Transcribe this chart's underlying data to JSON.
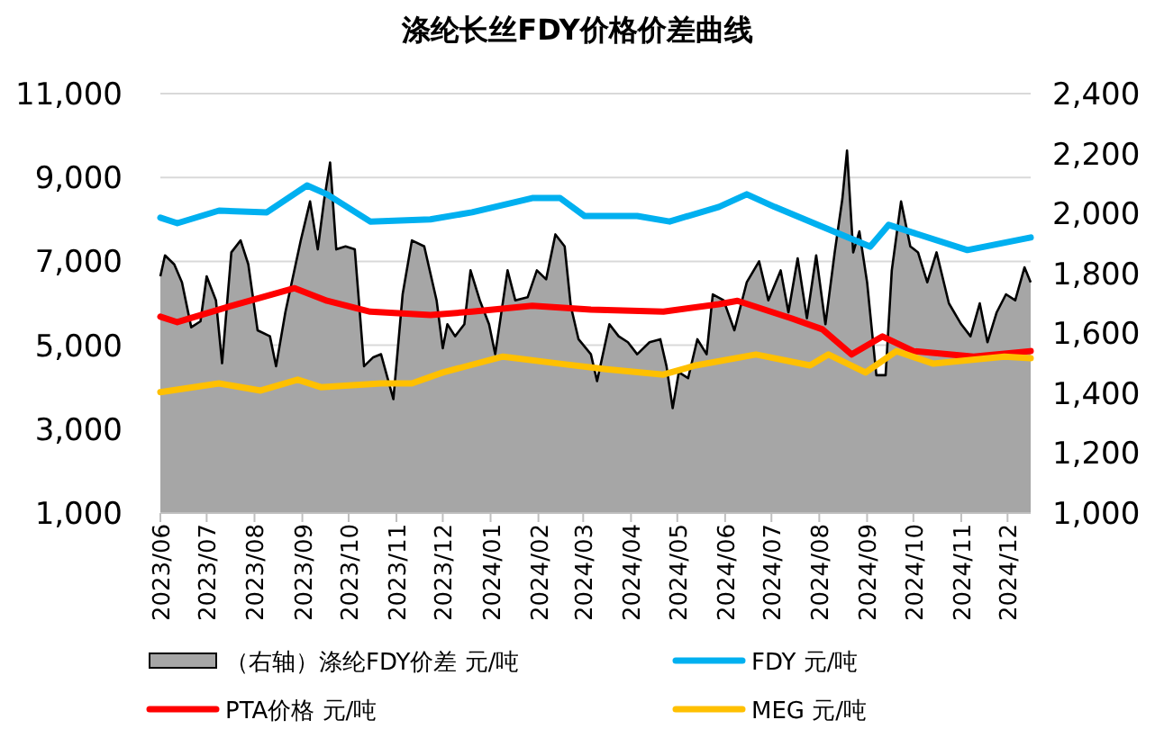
{
  "chart_data": {
    "type": "line",
    "title": "涤纶长丝FDY价格价差曲线",
    "xlim": [
      "2023-06-01",
      "2024-12-16"
    ],
    "xticks": [
      {
        "value": "2023-06-01",
        "label": "2023/06"
      },
      {
        "value": "2023-07-01",
        "label": "2023/07"
      },
      {
        "value": "2023-08-01",
        "label": "2023/08"
      },
      {
        "value": "2023-09-01",
        "label": "2023/09"
      },
      {
        "value": "2023-10-01",
        "label": "2023/10"
      },
      {
        "value": "2023-11-01",
        "label": "2023/11"
      },
      {
        "value": "2023-12-01",
        "label": "2023/12"
      },
      {
        "value": "2024-01-01",
        "label": "2024/01"
      },
      {
        "value": "2024-02-01",
        "label": "2024/02"
      },
      {
        "value": "2024-03-01",
        "label": "2024/03"
      },
      {
        "value": "2024-04-01",
        "label": "2024/04"
      },
      {
        "value": "2024-05-01",
        "label": "2024/05"
      },
      {
        "value": "2024-06-01",
        "label": "2024/06"
      },
      {
        "value": "2024-07-01",
        "label": "2024/07"
      },
      {
        "value": "2024-08-01",
        "label": "2024/08"
      },
      {
        "value": "2024-09-01",
        "label": "2024/09"
      },
      {
        "value": "2024-10-01",
        "label": "2024/10"
      },
      {
        "value": "2024-11-01",
        "label": "2024/11"
      },
      {
        "value": "2024-12-01",
        "label": "2024/12"
      }
    ],
    "ylim": [
      1000,
      11000
    ],
    "yticks": [
      {
        "value": 1000,
        "label": "1,000"
      },
      {
        "value": 3000,
        "label": "3,000"
      },
      {
        "value": 5000,
        "label": "5,000"
      },
      {
        "value": 7000,
        "label": "7,000"
      },
      {
        "value": 9000,
        "label": "9,000"
      },
      {
        "value": 11000,
        "label": "11,000"
      }
    ],
    "y2lim": [
      1000,
      2400
    ],
    "y2ticks": [
      {
        "value": 1000,
        "label": "1,000"
      },
      {
        "value": 1200,
        "label": "1,200"
      },
      {
        "value": 1400,
        "label": "1,400"
      },
      {
        "value": 1600,
        "label": "1,600"
      },
      {
        "value": 1800,
        "label": "1,800"
      },
      {
        "value": 2000,
        "label": "2,000"
      },
      {
        "value": 2200,
        "label": "2,200"
      },
      {
        "value": 2400,
        "label": "2,400"
      }
    ],
    "grid": "y",
    "legend": "bottom",
    "series": [
      {
        "name": "（右轴）涤纶FDY价差 元/吨",
        "type": "area",
        "axis": "y2",
        "color": "#a6a6a6",
        "x": [
          "2023-06-01",
          "2023-06-04",
          "2023-06-10",
          "2023-06-15",
          "2023-06-21",
          "2023-06-27",
          "2023-07-01",
          "2023-07-07",
          "2023-07-11",
          "2023-07-17",
          "2023-07-23",
          "2023-07-28",
          "2023-08-03",
          "2023-08-11",
          "2023-08-15",
          "2023-08-21",
          "2023-08-31",
          "2023-09-06",
          "2023-09-11",
          "2023-09-15",
          "2023-09-19",
          "2023-09-23",
          "2023-09-29",
          "2023-10-05",
          "2023-10-11",
          "2023-10-17",
          "2023-10-22",
          "2023-10-30",
          "2023-11-05",
          "2023-11-11",
          "2023-11-19",
          "2023-11-27",
          "2023-12-01",
          "2023-12-04",
          "2023-12-09",
          "2023-12-15",
          "2023-12-19",
          "2023-12-25",
          "2023-12-31",
          "2024-01-04",
          "2024-01-12",
          "2024-01-17",
          "2024-01-25",
          "2024-01-31",
          "2024-02-06",
          "2024-02-12",
          "2024-02-18",
          "2024-02-22",
          "2024-02-27",
          "2024-03-06",
          "2024-03-10",
          "2024-03-18",
          "2024-03-24",
          "2024-03-30",
          "2024-04-05",
          "2024-04-13",
          "2024-04-20",
          "2024-04-24",
          "2024-04-28",
          "2024-05-02",
          "2024-05-08",
          "2024-05-14",
          "2024-05-20",
          "2024-05-24",
          "2024-05-31",
          "2024-06-07",
          "2024-06-15",
          "2024-06-23",
          "2024-06-29",
          "2024-07-07",
          "2024-07-12",
          "2024-07-18",
          "2024-07-24",
          "2024-07-30",
          "2024-08-05",
          "2024-08-11",
          "2024-08-16",
          "2024-08-19",
          "2024-08-23",
          "2024-08-27",
          "2024-09-01",
          "2024-09-07",
          "2024-09-13",
          "2024-09-17",
          "2024-09-23",
          "2024-09-29",
          "2024-10-04",
          "2024-10-10",
          "2024-10-16",
          "2024-10-24",
          "2024-11-01",
          "2024-11-07",
          "2024-11-13",
          "2024-11-18",
          "2024-11-24",
          "2024-11-30",
          "2024-12-06",
          "2024-12-12",
          "2024-12-16"
        ],
        "values": [
          1790,
          1860,
          1830,
          1770,
          1620,
          1640,
          1790,
          1710,
          1500,
          1870,
          1910,
          1830,
          1610,
          1590,
          1490,
          1670,
          1910,
          2040,
          1880,
          2040,
          2170,
          1880,
          1890,
          1880,
          1490,
          1520,
          1530,
          1380,
          1730,
          1910,
          1890,
          1710,
          1550,
          1630,
          1590,
          1630,
          1810,
          1710,
          1630,
          1530,
          1810,
          1710,
          1720,
          1810,
          1780,
          1930,
          1890,
          1690,
          1580,
          1530,
          1440,
          1630,
          1590,
          1570,
          1530,
          1570,
          1580,
          1490,
          1350,
          1470,
          1450,
          1580,
          1530,
          1730,
          1710,
          1610,
          1770,
          1840,
          1710,
          1810,
          1670,
          1850,
          1650,
          1860,
          1630,
          1870,
          2050,
          2210,
          1870,
          1940,
          1770,
          1460,
          1460,
          1810,
          2040,
          1890,
          1870,
          1770,
          1870,
          1700,
          1630,
          1590,
          1700,
          1570,
          1670,
          1730,
          1710,
          1820,
          1770
        ]
      },
      {
        "name": "FDY 元/吨",
        "color": "#00b0f0",
        "x": [
          "2023-06-01",
          "2023-06-12",
          "2023-07-09",
          "2023-08-09",
          "2023-09-04",
          "2023-09-17",
          "2023-10-15",
          "2023-11-23",
          "2023-12-20",
          "2024-01-28",
          "2024-02-15",
          "2024-03-02",
          "2024-04-05",
          "2024-04-26",
          "2024-05-28",
          "2024-06-15",
          "2024-07-03",
          "2024-09-03",
          "2024-09-15",
          "2024-11-05",
          "2024-12-16"
        ],
        "values": [
          8040,
          7910,
          8210,
          8170,
          8810,
          8600,
          7950,
          8000,
          8170,
          8510,
          8510,
          8080,
          8080,
          7950,
          8300,
          8600,
          8300,
          7350,
          7870,
          7270,
          7570
        ]
      },
      {
        "name": "PTA价格 元/吨",
        "color": "#ff0000",
        "x": [
          "2023-06-01",
          "2023-06-12",
          "2023-07-17",
          "2023-08-27",
          "2023-09-17",
          "2023-10-15",
          "2023-11-23",
          "2023-12-20",
          "2024-01-28",
          "2024-03-06",
          "2024-04-22",
          "2024-05-28",
          "2024-06-09",
          "2024-07-14",
          "2024-08-03",
          "2024-08-22",
          "2024-09-11",
          "2024-10-01",
          "2024-11-09",
          "2024-12-16"
        ],
        "values": [
          5680,
          5550,
          5940,
          6360,
          6060,
          5800,
          5720,
          5800,
          5940,
          5850,
          5800,
          5980,
          6060,
          5640,
          5380,
          4780,
          5210,
          4860,
          4730,
          4860
        ]
      },
      {
        "name": "MEG 元/吨",
        "color": "#ffc000",
        "x": [
          "2023-06-01",
          "2023-07-09",
          "2023-08-05",
          "2023-08-29",
          "2023-09-13",
          "2023-10-22",
          "2023-11-11",
          "2023-12-01",
          "2024-01-09",
          "2024-02-15",
          "2024-03-16",
          "2024-04-22",
          "2024-05-13",
          "2024-06-21",
          "2024-07-26",
          "2024-08-07",
          "2024-08-31",
          "2024-09-20",
          "2024-10-14",
          "2024-11-29",
          "2024-12-16"
        ],
        "values": [
          3880,
          4090,
          3920,
          4180,
          4000,
          4090,
          4090,
          4350,
          4730,
          4560,
          4430,
          4300,
          4520,
          4780,
          4520,
          4780,
          4350,
          4860,
          4560,
          4730,
          4690
        ]
      }
    ]
  }
}
